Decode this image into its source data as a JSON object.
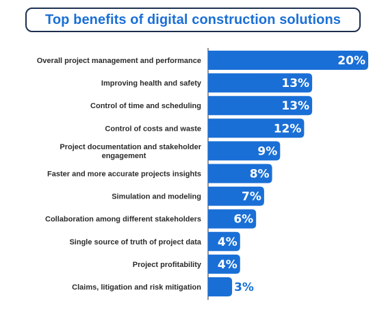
{
  "title": "Top benefits of digital construction solutions",
  "colors": {
    "bar": "#1a6fd6",
    "title_text": "#1a6fd6",
    "title_border": "#1b2f4e",
    "label_inside": "#ffffff",
    "label_outside": "#1a6fd6",
    "axis_line": "#2b2b2b"
  },
  "chart_data": {
    "type": "bar",
    "orientation": "horizontal",
    "categories": [
      [
        "Overall project management and performance"
      ],
      [
        "Improving health and safety"
      ],
      [
        "Control of time and scheduling"
      ],
      [
        "Control of costs and waste"
      ],
      [
        "Project documentation and stakeholder",
        "engagement"
      ],
      [
        "Faster and more accurate projects insights"
      ],
      [
        "Simulation and modeling"
      ],
      [
        "Collaboration among different stakeholders"
      ],
      [
        "Single source of truth of project data"
      ],
      [
        "Project profitability"
      ],
      [
        "Claims, litigation and risk mitigation"
      ]
    ],
    "values": [
      20,
      13,
      13,
      12,
      9,
      8,
      7,
      6,
      4,
      4,
      3
    ],
    "value_labels": [
      "20%",
      "13%",
      "13%",
      "12%",
      "9%",
      "8%",
      "7%",
      "6%",
      "4%",
      "4%",
      "3%"
    ],
    "unit": "%",
    "xlim": [
      0,
      20
    ],
    "grid": false,
    "legend": "none"
  }
}
